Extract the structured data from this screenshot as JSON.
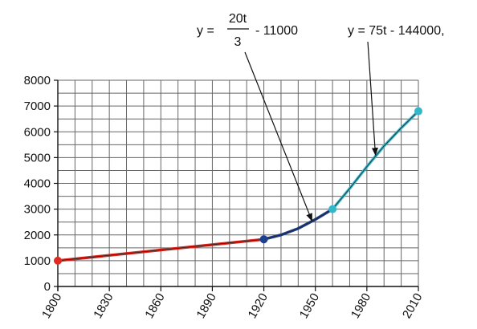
{
  "chart_data": {
    "type": "line",
    "title": "",
    "xlabel": "",
    "ylabel": "",
    "xlim": [
      1800,
      2010
    ],
    "ylim": [
      0,
      8000
    ],
    "xticks": [
      "1800",
      "1830",
      "1860",
      "1890",
      "1920",
      "1950",
      "1980",
      "2010"
    ],
    "yticks": [
      "0",
      "1000",
      "2000",
      "3000",
      "4000",
      "5000",
      "6000",
      "7000",
      "8000"
    ],
    "grid": true,
    "series": [
      {
        "color": "#d9261c",
        "x": [
          1800,
          1920
        ],
        "y": [
          1000,
          1830
        ]
      },
      {
        "color": "#1f3f8f",
        "x": [
          1920,
          1930,
          1940,
          1950,
          1960
        ],
        "y": [
          1830,
          2000,
          2250,
          2600,
          3000
        ]
      },
      {
        "color": "#35b6c9",
        "x": [
          1960,
          1970,
          1980,
          1990,
          2000,
          2010
        ],
        "y": [
          3000,
          3800,
          4650,
          5450,
          6150,
          6800
        ]
      }
    ],
    "points": [
      {
        "x": 1800,
        "y": 1000,
        "color": "#e02a24"
      },
      {
        "x": 1920,
        "y": 1830,
        "color": "#1f3f8f"
      },
      {
        "x": 1960,
        "y": 3000,
        "color": "#35b6c9"
      },
      {
        "x": 2010,
        "y": 6800,
        "color": "#35b6c9"
      }
    ],
    "annotations": [
      {
        "text_prefix": "y = ",
        "numerator": "20t",
        "denominator": "3",
        "text_suffix": "- 11000",
        "arrow_to": {
          "x": 1948,
          "y": 2550
        }
      },
      {
        "text": "y = 75t - 144000,",
        "arrow_to": {
          "x": 1985,
          "y": 5100
        }
      }
    ]
  }
}
